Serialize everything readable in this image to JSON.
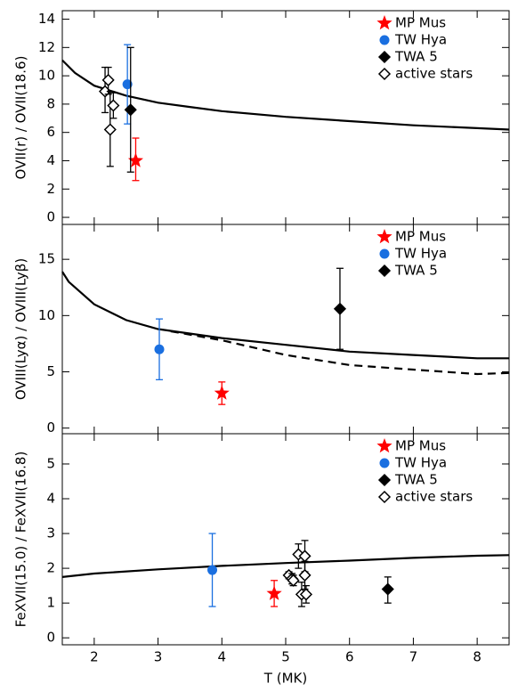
{
  "chart_data": [
    {
      "type": "scatter",
      "ylabel": "OVII(r) / OVII(18.6)",
      "ylim": [
        -0.5,
        14.6
      ],
      "yticks": [
        0,
        2,
        4,
        6,
        8,
        10,
        12,
        14
      ],
      "xlim": [
        1.5,
        8.5
      ],
      "curves": [
        {
          "style": "solid",
          "x": [
            1.5,
            1.7,
            2,
            2.5,
            3,
            3.5,
            4,
            5,
            6,
            7,
            8,
            8.5
          ],
          "values": [
            11.1,
            10.2,
            9.3,
            8.6,
            8.1,
            7.8,
            7.5,
            7.1,
            6.8,
            6.5,
            6.3,
            6.2
          ]
        }
      ],
      "series": [
        {
          "name": "MP Mus",
          "color": "#ff0000",
          "marker": "star",
          "x": [
            2.65
          ],
          "values": [
            4.0
          ],
          "ylow": [
            2.6
          ],
          "yhigh": [
            5.6
          ]
        },
        {
          "name": "TW Hya",
          "color": "#1a6fe0",
          "marker": "circle",
          "x": [
            2.52
          ],
          "values": [
            9.4
          ],
          "ylow": [
            6.6
          ],
          "yhigh": [
            12.2
          ]
        },
        {
          "name": "TWA 5",
          "color": "#000000",
          "marker": "diamond",
          "x": [
            2.57
          ],
          "values": [
            7.6
          ],
          "ylow": [
            3.2
          ],
          "yhigh": [
            12.0
          ]
        },
        {
          "name": "active stars",
          "color": "#000000",
          "marker": "open-diamond",
          "x": [
            2.17,
            2.22,
            2.25,
            2.3
          ],
          "values": [
            8.9,
            9.7,
            6.2,
            7.9
          ],
          "ylow": [
            7.4,
            8.7,
            3.6,
            7.0
          ],
          "yhigh": [
            10.6,
            10.6,
            8.9,
            8.8
          ]
        }
      ]
    },
    {
      "type": "scatter",
      "ylabel": "OVIII(Lyα) / OVIII(Lyβ)",
      "ylim": [
        -0.5,
        18.1
      ],
      "yticks": [
        0,
        5,
        10,
        15
      ],
      "xlim": [
        1.5,
        8.5
      ],
      "curves": [
        {
          "style": "solid",
          "x": [
            1.5,
            1.6,
            2,
            2.5,
            3,
            4,
            5,
            6,
            7,
            8,
            8.5
          ],
          "values": [
            13.9,
            13.0,
            11.0,
            9.6,
            8.8,
            8.0,
            7.4,
            6.8,
            6.5,
            6.2,
            6.2
          ]
        },
        {
          "style": "dashed",
          "x": [
            3.2,
            4,
            5,
            6,
            7,
            8,
            8.5
          ],
          "values": [
            8.6,
            7.8,
            6.5,
            5.6,
            5.2,
            4.8,
            4.9
          ]
        }
      ],
      "series": [
        {
          "name": "MP Mus",
          "color": "#ff0000",
          "marker": "star",
          "x": [
            4.0
          ],
          "values": [
            3.1
          ],
          "ylow": [
            2.1
          ],
          "yhigh": [
            4.1
          ]
        },
        {
          "name": "TW Hya",
          "color": "#1a6fe0",
          "marker": "circle",
          "x": [
            3.02
          ],
          "values": [
            7.0
          ],
          "ylow": [
            4.3
          ],
          "yhigh": [
            9.7
          ]
        },
        {
          "name": "TWA 5",
          "color": "#000000",
          "marker": "diamond",
          "x": [
            5.85
          ],
          "values": [
            10.6
          ],
          "ylow": [
            7.0
          ],
          "yhigh": [
            14.2
          ]
        }
      ]
    },
    {
      "type": "scatter",
      "ylabel": "FeXVII(15.0) / FeXVII(16.8)",
      "xlabel": "T (MK)",
      "ylim": [
        -0.2,
        5.87
      ],
      "yticks": [
        0,
        1,
        2,
        3,
        4,
        5
      ],
      "xlim": [
        1.5,
        8.5
      ],
      "xticks": [
        2,
        3,
        4,
        5,
        6,
        7,
        8
      ],
      "curves": [
        {
          "style": "solid",
          "x": [
            1.5,
            2,
            3,
            4,
            5,
            6,
            7,
            8,
            8.5
          ],
          "values": [
            1.75,
            1.85,
            1.97,
            2.07,
            2.15,
            2.22,
            2.3,
            2.36,
            2.38
          ]
        }
      ],
      "series": [
        {
          "name": "MP Mus",
          "color": "#ff0000",
          "marker": "star",
          "x": [
            4.82
          ],
          "values": [
            1.27
          ],
          "ylow": [
            0.9
          ],
          "yhigh": [
            1.65
          ]
        },
        {
          "name": "TW Hya",
          "color": "#1a6fe0",
          "marker": "circle",
          "x": [
            3.85
          ],
          "values": [
            1.95
          ],
          "ylow": [
            0.9
          ],
          "yhigh": [
            3.0
          ]
        },
        {
          "name": "TWA 5",
          "color": "#000000",
          "marker": "diamond",
          "x": [
            6.6
          ],
          "values": [
            1.4
          ],
          "ylow": [
            1.0
          ],
          "yhigh": [
            1.75
          ]
        },
        {
          "name": "active stars",
          "color": "#000000",
          "marker": "open-diamond",
          "x": [
            5.05,
            5.1,
            5.12,
            5.2,
            5.25,
            5.3,
            5.3,
            5.32
          ],
          "values": [
            1.8,
            1.7,
            1.65,
            2.4,
            1.25,
            2.35,
            1.8,
            1.25
          ],
          "ylow": [
            1.7,
            1.55,
            1.5,
            2.0,
            0.9,
            1.9,
            1.4,
            1.0
          ],
          "yhigh": [
            1.9,
            1.85,
            1.8,
            2.7,
            1.6,
            2.8,
            2.2,
            1.5
          ]
        }
      ]
    }
  ]
}
